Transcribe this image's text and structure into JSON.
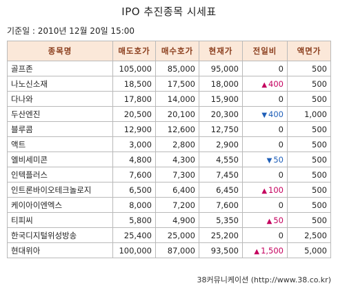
{
  "title": "IPO 추진종목 시세표",
  "base_date": "기준일 : 2010년 12월 20일 15:00",
  "table": {
    "headers": [
      "종목명",
      "매도호가",
      "매수호가",
      "현재가",
      "전일비",
      "액면가"
    ],
    "rows": [
      {
        "name": "골프존",
        "ask": "105,000",
        "bid": "85,000",
        "price": "95,000",
        "dir": "none",
        "change": "0",
        "par": "500"
      },
      {
        "name": "나노신소재",
        "ask": "18,500",
        "bid": "17,500",
        "price": "18,000",
        "dir": "up",
        "change": "400",
        "par": "500"
      },
      {
        "name": "다나와",
        "ask": "17,800",
        "bid": "14,000",
        "price": "15,900",
        "dir": "none",
        "change": "0",
        "par": "500"
      },
      {
        "name": "두산엔진",
        "ask": "20,500",
        "bid": "20,100",
        "price": "20,300",
        "dir": "down",
        "change": "400",
        "par": "1,000"
      },
      {
        "name": "블루콤",
        "ask": "12,900",
        "bid": "12,600",
        "price": "12,750",
        "dir": "none",
        "change": "0",
        "par": "500"
      },
      {
        "name": "액트",
        "ask": "3,000",
        "bid": "2,800",
        "price": "2,900",
        "dir": "none",
        "change": "0",
        "par": "500"
      },
      {
        "name": "엘비세미콘",
        "ask": "4,800",
        "bid": "4,300",
        "price": "4,550",
        "dir": "down",
        "change": "50",
        "par": "500"
      },
      {
        "name": "인텍플러스",
        "ask": "7,600",
        "bid": "7,300",
        "price": "7,450",
        "dir": "none",
        "change": "0",
        "par": "500"
      },
      {
        "name": "인트론바이오테크놀로지",
        "ask": "6,500",
        "bid": "6,400",
        "price": "6,450",
        "dir": "up",
        "change": "100",
        "par": "500"
      },
      {
        "name": "케이아이엔엑스",
        "ask": "8,000",
        "bid": "7,200",
        "price": "7,600",
        "dir": "none",
        "change": "0",
        "par": "500"
      },
      {
        "name": "티피씨",
        "ask": "5,800",
        "bid": "4,900",
        "price": "5,350",
        "dir": "up",
        "change": "50",
        "par": "500"
      },
      {
        "name": "한국디지털위성방송",
        "ask": "25,400",
        "bid": "25,000",
        "price": "25,200",
        "dir": "none",
        "change": "0",
        "par": "2,500"
      },
      {
        "name": "현대위아",
        "ask": "100,000",
        "bid": "87,000",
        "price": "93,500",
        "dir": "up",
        "change": "1,500",
        "par": "5,000"
      }
    ]
  },
  "icons": {
    "up": "triangle-up-icon",
    "down": "triangle-down-icon"
  },
  "colors": {
    "header_bg": "#fbe8d9",
    "header_text": "#8a3d1c",
    "up": "#c4005e",
    "down": "#1f5fb8",
    "border": "#b9b9b9"
  },
  "footer": "38커뮤니케이션 (http://www.38.co.kr)"
}
